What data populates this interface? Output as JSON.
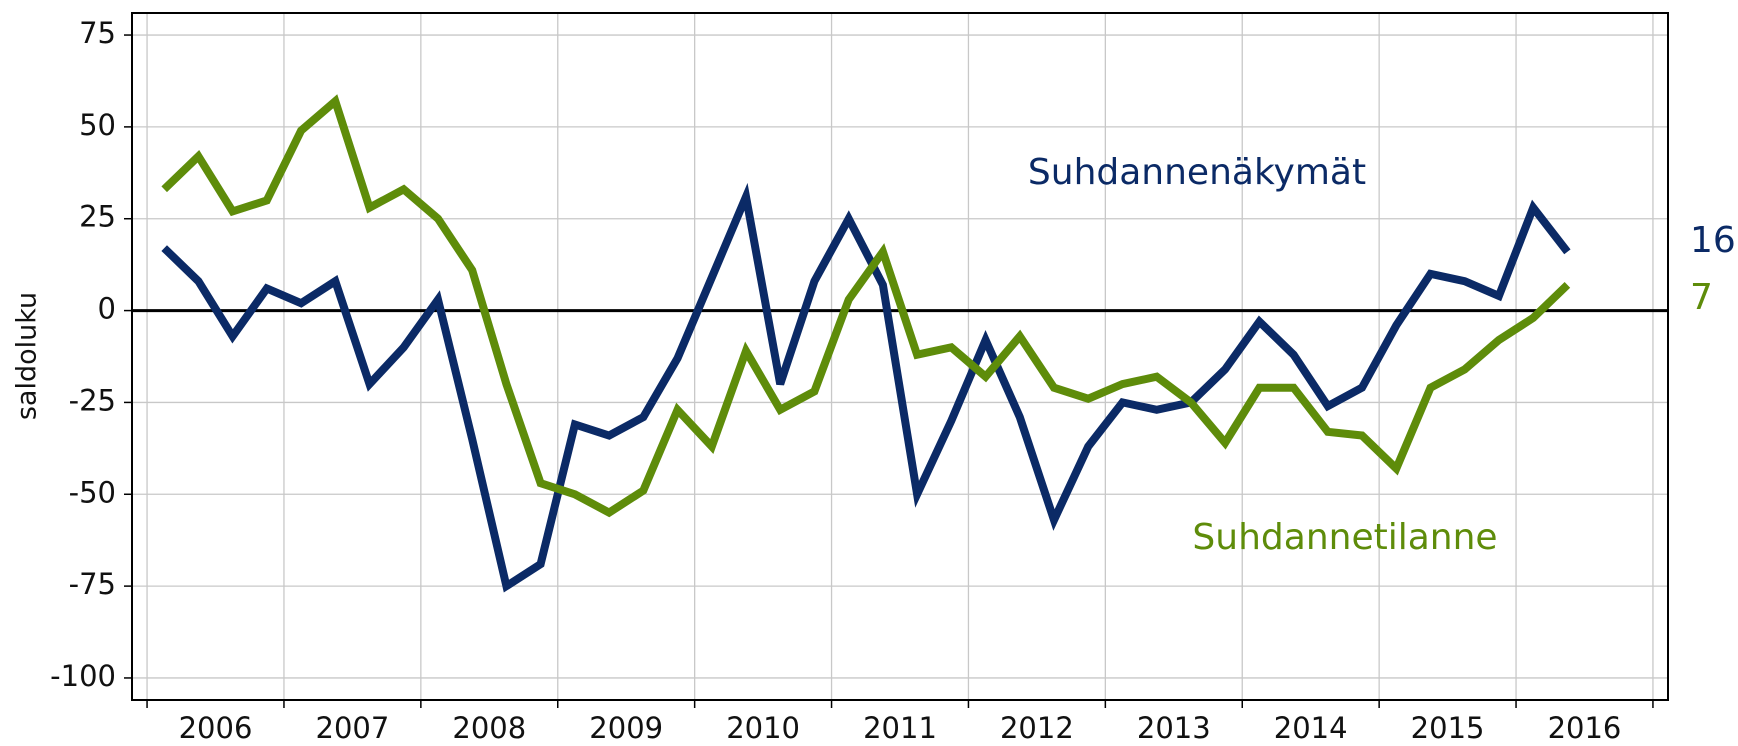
{
  "chart_data": {
    "type": "line",
    "y_label": "saldoluku",
    "x": [
      2006.125,
      2006.375,
      2006.625,
      2006.875,
      2007.125,
      2007.375,
      2007.625,
      2007.875,
      2008.125,
      2008.375,
      2008.625,
      2008.875,
      2009.125,
      2009.375,
      2009.625,
      2009.875,
      2010.125,
      2010.375,
      2010.625,
      2010.875,
      2011.125,
      2011.375,
      2011.625,
      2011.875,
      2012.125,
      2012.375,
      2012.625,
      2012.875,
      2013.125,
      2013.375,
      2013.625,
      2013.875,
      2014.125,
      2014.375,
      2014.625,
      2014.875,
      2015.125,
      2015.375,
      2015.625,
      2015.875,
      2016.125,
      2016.375
    ],
    "series": [
      {
        "name": "Suhdannenäkymät",
        "color": "#0b2a66",
        "values": [
          17,
          8,
          -7,
          6,
          2,
          8,
          -20,
          -10,
          3,
          -35,
          -75,
          -69,
          -31,
          -34,
          -29,
          -13,
          9,
          31,
          -20,
          8,
          25,
          7,
          -50,
          -30,
          -8,
          -29,
          -57,
          -37,
          -25,
          -27,
          -25,
          -16,
          -3,
          -12,
          -26,
          -21,
          -4,
          10,
          8,
          4,
          28,
          16
        ]
      },
      {
        "name": "Suhdannetilanne",
        "color": "#5e8c0a",
        "values": [
          33,
          42,
          27,
          30,
          49,
          57,
          28,
          33,
          25,
          11,
          -20,
          -47,
          -50,
          -55,
          -49,
          -27,
          -37,
          -11,
          -27,
          -22,
          3,
          16,
          -12,
          -10,
          -18,
          -7,
          -21,
          -24,
          -20,
          -18,
          -25,
          -36,
          -21,
          -21,
          -33,
          -34,
          -43,
          -21,
          -16,
          -8,
          -2,
          7
        ]
      }
    ],
    "xlim": [
      2005.89,
      2017.11
    ],
    "xticks": [
      {
        "value": 2006.5,
        "label": "2006"
      },
      {
        "value": 2007.5,
        "label": "2007"
      },
      {
        "value": 2008.5,
        "label": "2008"
      },
      {
        "value": 2009.5,
        "label": "2009"
      },
      {
        "value": 2010.5,
        "label": "2010"
      },
      {
        "value": 2011.5,
        "label": "2011"
      },
      {
        "value": 2012.5,
        "label": "2012"
      },
      {
        "value": 2013.5,
        "label": "2013"
      },
      {
        "value": 2014.5,
        "label": "2014"
      },
      {
        "value": 2015.5,
        "label": "2015"
      },
      {
        "value": 2016.5,
        "label": "2016"
      }
    ],
    "ylim": [
      -106,
      81
    ],
    "yticks": [
      -100,
      -75,
      -50,
      -25,
      0,
      25,
      50,
      75
    ],
    "grid": true
  }
}
